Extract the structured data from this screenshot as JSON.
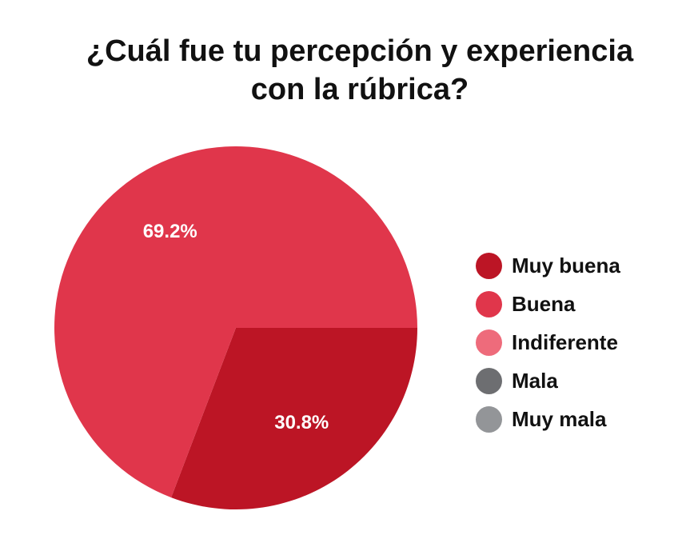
{
  "chart_data": {
    "type": "pie",
    "title_lines": [
      "¿Cuál fue tu percepción y experiencia",
      "con la rúbrica?"
    ],
    "categories": [
      "Muy buena",
      "Buena",
      "Indiferente",
      "Mala",
      "Muy mala"
    ],
    "values": [
      30.8,
      69.2,
      0,
      0,
      0
    ],
    "data_labels": [
      "30.8%",
      "69.2%",
      "",
      "",
      ""
    ],
    "colors": [
      "#bc1525",
      "#e0364b",
      "#ee6b7b",
      "#6d6e71",
      "#939598"
    ],
    "legend_position": "right"
  }
}
